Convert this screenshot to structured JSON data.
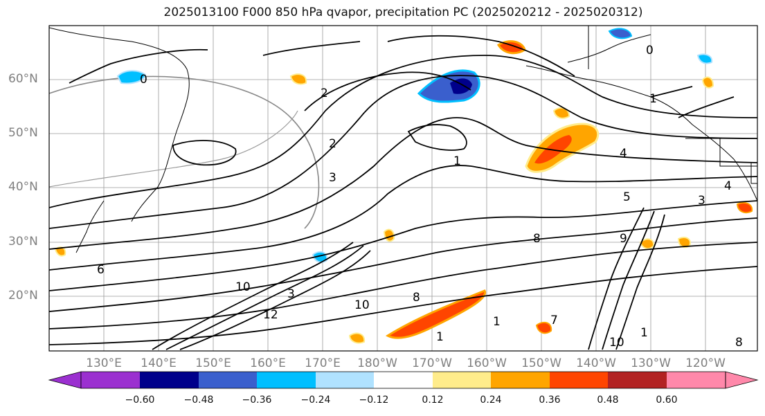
{
  "title": "2025013100 F000 850 hPa qvapor, precipitation PC (2025020212 - 2025020312)",
  "lat_labels": [
    "60°N",
    "50°N",
    "40°N",
    "30°N",
    "20°N"
  ],
  "lon_labels": [
    "130°E",
    "140°E",
    "150°E",
    "160°E",
    "170°E",
    "180°W",
    "170°W",
    "160°W",
    "150°W",
    "140°W",
    "130°W",
    "120°W"
  ],
  "colorbar": {
    "colors": [
      "#9b30d0",
      "#00008b",
      "#3a5fcd",
      "#00bfff",
      "#b0e2ff",
      "#ffffff",
      "#ffec8b",
      "#ffa500",
      "#ff4500",
      "#b22222",
      "#ff88aa"
    ],
    "ticks": [
      "−0.60",
      "−0.48",
      "−0.36",
      "−0.24",
      "−0.12",
      "0.12",
      "0.24",
      "0.36",
      "0.48",
      "0.60"
    ]
  },
  "contour_labels": [
    "2",
    "1",
    "0",
    "0",
    "2",
    "3",
    "1",
    "3",
    "4",
    "5",
    "8",
    "9",
    "10",
    "7",
    "6",
    "8",
    "1",
    "1",
    "3",
    "4",
    "1",
    "10",
    "10",
    "12",
    "8"
  ]
}
